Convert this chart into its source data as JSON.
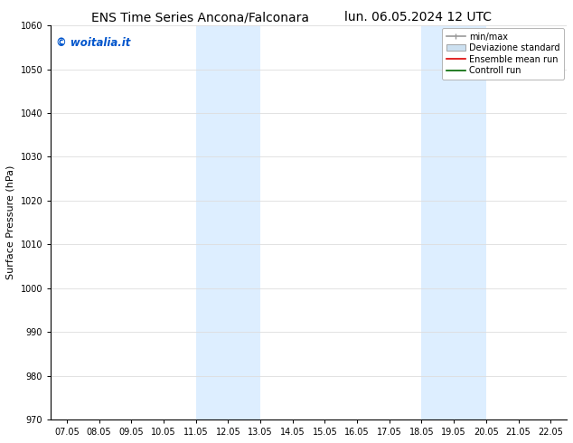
{
  "title_left": "ENS Time Series Ancona/Falconara",
  "title_right": "lun. 06.05.2024 12 UTC",
  "ylabel": "Surface Pressure (hPa)",
  "xlabel": "",
  "ylim": [
    970,
    1060
  ],
  "yticks": [
    970,
    980,
    990,
    1000,
    1010,
    1020,
    1030,
    1040,
    1050,
    1060
  ],
  "xtick_labels": [
    "07.05",
    "08.05",
    "09.05",
    "10.05",
    "11.05",
    "12.05",
    "13.05",
    "14.05",
    "15.05",
    "16.05",
    "17.05",
    "18.05",
    "19.05",
    "20.05",
    "21.05",
    "22.05"
  ],
  "background_color": "#ffffff",
  "plot_bg_color": "#ffffff",
  "shaded_regions": [
    {
      "xmin": 4.0,
      "xmax": 6.0,
      "color": "#ddeeff"
    },
    {
      "xmin": 11.0,
      "xmax": 13.0,
      "color": "#ddeeff"
    }
  ],
  "watermark_text": "© woitalia.it",
  "watermark_color": "#0055cc",
  "legend_entries": [
    {
      "label": "min/max",
      "color": "#999999",
      "lw": 1.2
    },
    {
      "label": "Deviazione standard",
      "color": "#cce0f0",
      "lw": 6
    },
    {
      "label": "Ensemble mean run",
      "color": "#dd0000",
      "lw": 1.2
    },
    {
      "label": "Controll run",
      "color": "#006600",
      "lw": 1.2
    }
  ],
  "title_fontsize": 10,
  "tick_fontsize": 7,
  "ylabel_fontsize": 8,
  "grid_color": "#dddddd",
  "spine_color": "#000000"
}
